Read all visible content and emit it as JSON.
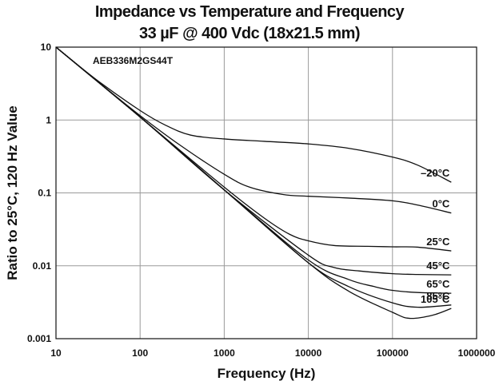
{
  "chart_data": {
    "type": "line",
    "title": "Impedance vs Temperature and Frequency",
    "subtitle": "33 µF @ 400 Vdc (18x21.5 mm)",
    "xlabel": "Frequency (Hz)",
    "ylabel": "Ratio to 25°C, 120 Hz Value",
    "x_scale": "log",
    "y_scale": "log",
    "xlim": [
      10,
      1000000
    ],
    "ylim": [
      0.001,
      10
    ],
    "x_ticks": [
      "10",
      "100",
      "1000",
      "10000",
      "100000",
      "1000000"
    ],
    "y_ticks": [
      "0.001",
      "0.01",
      "0.1",
      "1",
      "10"
    ],
    "grid": true,
    "annotation": "AEB336M2GS44T",
    "series": [
      {
        "name": "–20°C",
        "x": [
          10,
          30,
          100,
          200,
          400,
          1000,
          3000,
          10000,
          30000,
          100000,
          200000,
          500000
        ],
        "y": [
          10,
          3.6,
          1.35,
          0.85,
          0.62,
          0.55,
          0.51,
          0.47,
          0.41,
          0.31,
          0.24,
          0.14
        ]
      },
      {
        "name": "0°C",
        "x": [
          10,
          30,
          100,
          300,
          1000,
          2000,
          5000,
          10000,
          30000,
          100000,
          200000,
          500000
        ],
        "y": [
          10,
          3.5,
          1.15,
          0.45,
          0.18,
          0.12,
          0.095,
          0.09,
          0.085,
          0.078,
          0.068,
          0.053
        ]
      },
      {
        "name": "25°C",
        "x": [
          10,
          100,
          1000,
          3000,
          6000,
          10000,
          20000,
          50000,
          100000,
          200000,
          500000
        ],
        "y": [
          10,
          1.1,
          0.12,
          0.045,
          0.027,
          0.022,
          0.019,
          0.0185,
          0.0182,
          0.018,
          0.016
        ]
      },
      {
        "name": "45°C",
        "x": [
          10,
          100,
          1000,
          10000,
          20000,
          40000,
          100000,
          200000,
          500000
        ],
        "y": [
          10,
          1.1,
          0.11,
          0.014,
          0.0095,
          0.0085,
          0.0078,
          0.0076,
          0.0075
        ]
      },
      {
        "name": "65°C",
        "x": [
          10,
          100,
          1000,
          10000,
          30000,
          60000,
          100000,
          200000,
          500000
        ],
        "y": [
          10,
          1.1,
          0.11,
          0.012,
          0.0065,
          0.0052,
          0.0046,
          0.0043,
          0.0042
        ]
      },
      {
        "name": "85°C",
        "x": [
          10,
          100,
          1000,
          10000,
          30000,
          100000,
          200000,
          500000
        ],
        "y": [
          10,
          1.1,
          0.11,
          0.011,
          0.0052,
          0.0031,
          0.0027,
          0.0029
        ]
      },
      {
        "name": "105°C",
        "x": [
          10,
          100,
          1000,
          10000,
          30000,
          100000,
          160000,
          300000,
          500000
        ],
        "y": [
          10,
          1.1,
          0.11,
          0.011,
          0.0045,
          0.0023,
          0.0019,
          0.0021,
          0.0026
        ]
      }
    ]
  }
}
